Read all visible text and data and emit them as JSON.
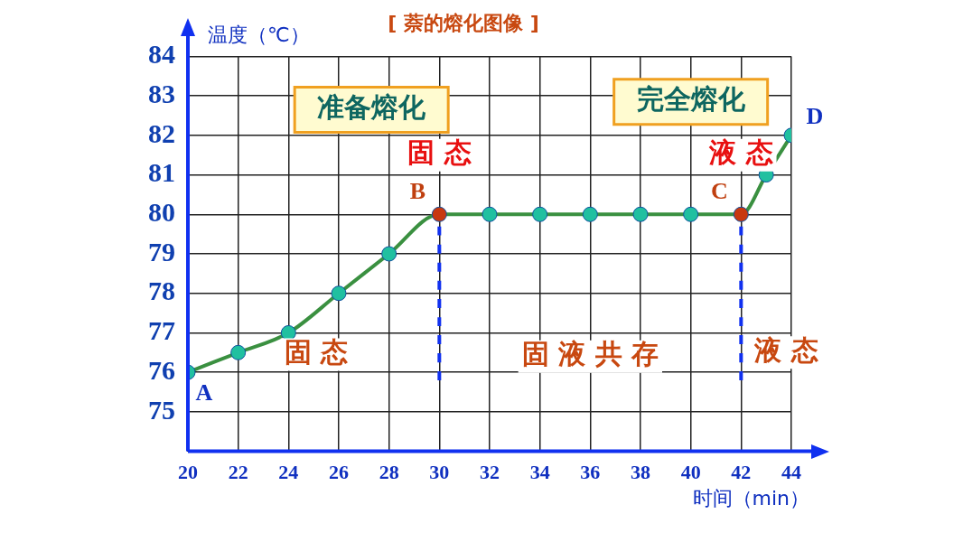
{
  "chart_data": {
    "type": "line",
    "title": "[ 萘的熔化图像 ]",
    "xlabel": "时间（min）",
    "ylabel": "温度（℃）",
    "xlim": [
      20,
      44
    ],
    "xticks": [
      20,
      22,
      24,
      26,
      28,
      30,
      32,
      34,
      36,
      38,
      40,
      42,
      44
    ],
    "ylim": [
      74,
      84
    ],
    "yticks": [
      {
        "value": 74,
        "label": null
      },
      75,
      76,
      77,
      78,
      79,
      80,
      81,
      82,
      83,
      84
    ],
    "grid": true,
    "legend": false,
    "marker": "circle",
    "series": [
      {
        "color": "#3a9040",
        "x": [
          20,
          22,
          24,
          26,
          28,
          30,
          32,
          34,
          36,
          38,
          40,
          42,
          43,
          44
        ],
        "values": [
          76,
          76.5,
          77,
          78,
          79,
          80,
          80,
          80,
          80,
          80,
          80,
          80,
          81,
          82
        ],
        "colors": [
          "#20c0a0",
          "#20c0a0",
          "#20c0a0",
          "#20c0a0",
          "#20c0a0",
          "#c83810",
          "#20c0a0",
          "#20c0a0",
          "#20c0a0",
          "#20c0a0",
          "#20c0a0",
          "#c83810",
          "#20c0a0",
          "#20c0a0"
        ]
      },
      {
        "type": "line",
        "color": "#1030f0",
        "line_style": "dashed",
        "marker": "none",
        "x": [
          30,
          30
        ],
        "values": [
          75.8,
          80
        ]
      },
      {
        "type": "line",
        "color": "#1030f0",
        "line_style": "dashed",
        "marker": "none",
        "x": [
          42,
          42
        ],
        "values": [
          75.8,
          80
        ]
      }
    ],
    "annotations": [
      "准备熔化",
      "完全熔化",
      "固 态",
      "液 态",
      "固 态",
      "固 液 共 存",
      "液 态",
      {
        "text": "A",
        "x": 20,
        "y": 76
      },
      {
        "text": "B",
        "x": 30,
        "y": 80
      },
      {
        "text": "C",
        "x": 42,
        "y": 80
      },
      {
        "text": "D",
        "x": 44,
        "y": 82
      }
    ]
  }
}
